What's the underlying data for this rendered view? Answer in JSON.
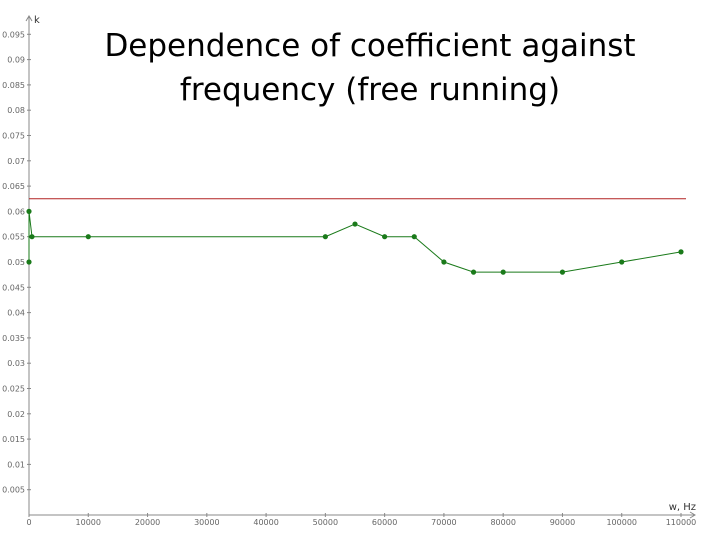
{
  "title_lines": [
    "Dependence of  coefficient against",
    "frequency (free running)"
  ],
  "chart_data": {
    "type": "line",
    "title": "Dependence of  coefficient against frequency (free running)",
    "ylabel": "k",
    "xlabel": "w, Hz",
    "xlim": [
      0,
      110000
    ],
    "ylim": [
      0,
      0.1
    ],
    "x_ticks": [
      "0",
      "10000",
      "20000",
      "30000",
      "40000",
      "50000",
      "60000",
      "70000",
      "80000",
      "90000",
      "100000",
      "110000"
    ],
    "y_ticks": [
      "0.005",
      "0.01",
      "0.015",
      "0.02",
      "0.025",
      "0.03",
      "0.035",
      "0.04",
      "0.045",
      "0.05",
      "0.055",
      "0.06",
      "0.065",
      "0.07",
      "0.075",
      "0.08",
      "0.085",
      "0.09",
      "0.095"
    ],
    "reference_line": {
      "y": 0.0625,
      "color": "#b22222"
    },
    "series": [
      {
        "color": "#1a7a1a",
        "points": [
          [
            0,
            0.05
          ],
          [
            0,
            0.06
          ],
          [
            500,
            0.055
          ],
          [
            10000,
            0.055
          ],
          [
            50000,
            0.055
          ],
          [
            55000,
            0.0575
          ],
          [
            60000,
            0.055
          ],
          [
            65000,
            0.055
          ],
          [
            70000,
            0.05
          ],
          [
            75000,
            0.048
          ],
          [
            80000,
            0.048
          ],
          [
            90000,
            0.048
          ],
          [
            100000,
            0.05
          ],
          [
            110000,
            0.052
          ]
        ]
      }
    ],
    "grid": false
  }
}
